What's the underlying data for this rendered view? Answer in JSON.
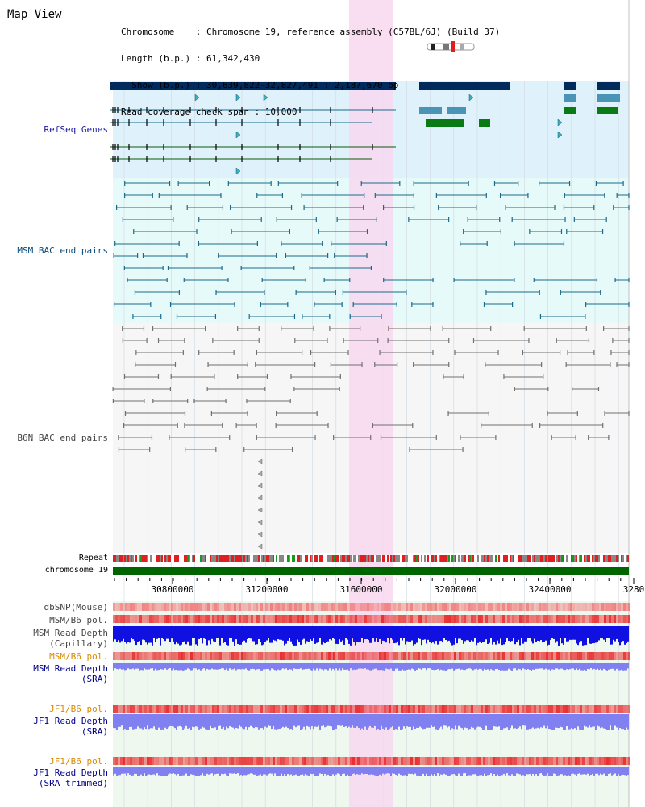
{
  "title": "Map View",
  "header": {
    "lines": [
      "Chromosome    : Chromosome 19, reference assembly (C57BL/6J) (Build 37)",
      "Length (b.p.) : 61,342,430",
      "  Show (b.p.) : 30,639,822-32,827,491 : 2,187,670 bp",
      "Read coverage check span : 10,000"
    ]
  },
  "tracks": {
    "refseq": "RefSeq Genes",
    "msm_bac": "MSM BAC end pairs",
    "b6n_bac": "B6N BAC end pairs",
    "repeat": "Repeat",
    "chromosome": "chromosome 19",
    "dbsnp": "dbSNP(Mouse)",
    "msm_b6_pol_1": "MSM/B6 pol.",
    "msm_depth_cap_1": "MSM Read Depth",
    "msm_depth_cap_2": "(Capillary)",
    "msm_b6_pol_2": "MSM/B6 pol.",
    "msm_depth_sra_1": "MSM Read Depth",
    "msm_depth_sra_2": "(SRA)",
    "jf1_b6_pol_1": "JF1/B6 pol.",
    "jf1_depth_sra_1": "JF1 Read Depth",
    "jf1_depth_sra_2": "(SRA)",
    "jf1_b6_pol_2": "JF1/B6 pol.",
    "jf1_depth_trim_1": "JF1 Read Depth",
    "jf1_depth_trim_2": "(SRA trimmed)"
  },
  "axis": {
    "ticks": [
      "30800000",
      "31200000",
      "31600000",
      "32000000",
      "32400000",
      "3280"
    ]
  },
  "colors": {
    "highlight": "#f8d8f0",
    "refseq_bg": "#dff2fb",
    "msm_bg": "#e6fafa",
    "b6n_bg": "#f6f6f6",
    "chrom_bar": "#006400",
    "gene_dark": "#002b5c",
    "gene_teal": "#4a94b8",
    "gene_green": "#0a7a14",
    "msm_line": "#1a6a8a",
    "b6n_line": "#707070",
    "snp": "#f08080",
    "pol": "#e83030",
    "depth_cap": "#1010e0",
    "depth_sra": "#8080f0",
    "depth_bg": "#eef8ee"
  }
}
